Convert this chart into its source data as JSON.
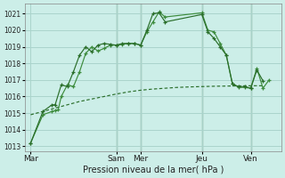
{
  "xlabel": "Pression niveau de la mer( hPa )",
  "ylim": [
    1012.7,
    1021.6
  ],
  "yticks": [
    1013,
    1014,
    1015,
    1016,
    1017,
    1018,
    1019,
    1020,
    1021
  ],
  "background_color": "#cceee8",
  "grid_color": "#aad4cc",
  "line_color_dark": "#2a6e2a",
  "line_color_light": "#3d8c3d",
  "vline_color": "#446644",
  "x_day_labels": [
    "Mar",
    "Sam",
    "Mer",
    "Jeu",
    "Ven"
  ],
  "x_day_positions": [
    0,
    14,
    18,
    28,
    36
  ],
  "xlim": [
    -1,
    41
  ],
  "vline_positions": [
    14,
    18,
    28,
    36
  ],
  "series1_x": [
    0,
    2,
    3.5,
    4,
    4.5,
    5,
    6,
    7,
    8,
    9,
    10,
    11,
    12,
    13,
    14,
    15,
    16,
    17,
    18,
    19,
    20,
    21,
    22,
    28,
    29,
    30,
    31,
    32,
    33,
    34,
    35,
    36,
    37,
    38,
    39
  ],
  "series1_y": [
    1013.2,
    1014.9,
    1015.1,
    1015.15,
    1015.2,
    1016.0,
    1016.7,
    1016.6,
    1017.5,
    1018.6,
    1019.0,
    1018.75,
    1018.9,
    1019.1,
    1019.1,
    1019.15,
    1019.2,
    1019.2,
    1019.1,
    1019.9,
    1020.5,
    1021.1,
    1020.8,
    1021.05,
    1020.0,
    1019.9,
    1019.2,
    1018.5,
    1016.8,
    1016.55,
    1016.55,
    1016.5,
    1017.7,
    1016.5,
    1017.0
  ],
  "series2_x": [
    0,
    2,
    3.5,
    4,
    5,
    6,
    7,
    8,
    9,
    10,
    11,
    12,
    13,
    14,
    15,
    16,
    17,
    18,
    19,
    20,
    21,
    22,
    28,
    29,
    30,
    31,
    32,
    33,
    34,
    35,
    36,
    37,
    38
  ],
  "series2_y": [
    1013.2,
    1015.1,
    1015.5,
    1015.5,
    1016.7,
    1016.6,
    1017.5,
    1018.5,
    1019.0,
    1018.7,
    1019.1,
    1019.2,
    1019.15,
    1019.1,
    1019.2,
    1019.2,
    1019.2,
    1019.1,
    1020.0,
    1021.0,
    1021.05,
    1020.5,
    1020.95,
    1019.9,
    1019.5,
    1019.0,
    1018.5,
    1016.75,
    1016.6,
    1016.6,
    1016.5,
    1017.6,
    1016.95
  ],
  "series3_x": [
    0,
    2,
    4,
    6,
    8,
    10,
    12,
    14,
    16,
    18,
    20,
    22,
    24,
    26,
    28,
    30,
    32,
    34,
    36,
    38
  ],
  "series3_y": [
    1014.9,
    1015.1,
    1015.3,
    1015.5,
    1015.7,
    1015.85,
    1016.0,
    1016.15,
    1016.28,
    1016.38,
    1016.45,
    1016.5,
    1016.55,
    1016.58,
    1016.6,
    1016.62,
    1016.63,
    1016.64,
    1016.65,
    1016.65
  ]
}
